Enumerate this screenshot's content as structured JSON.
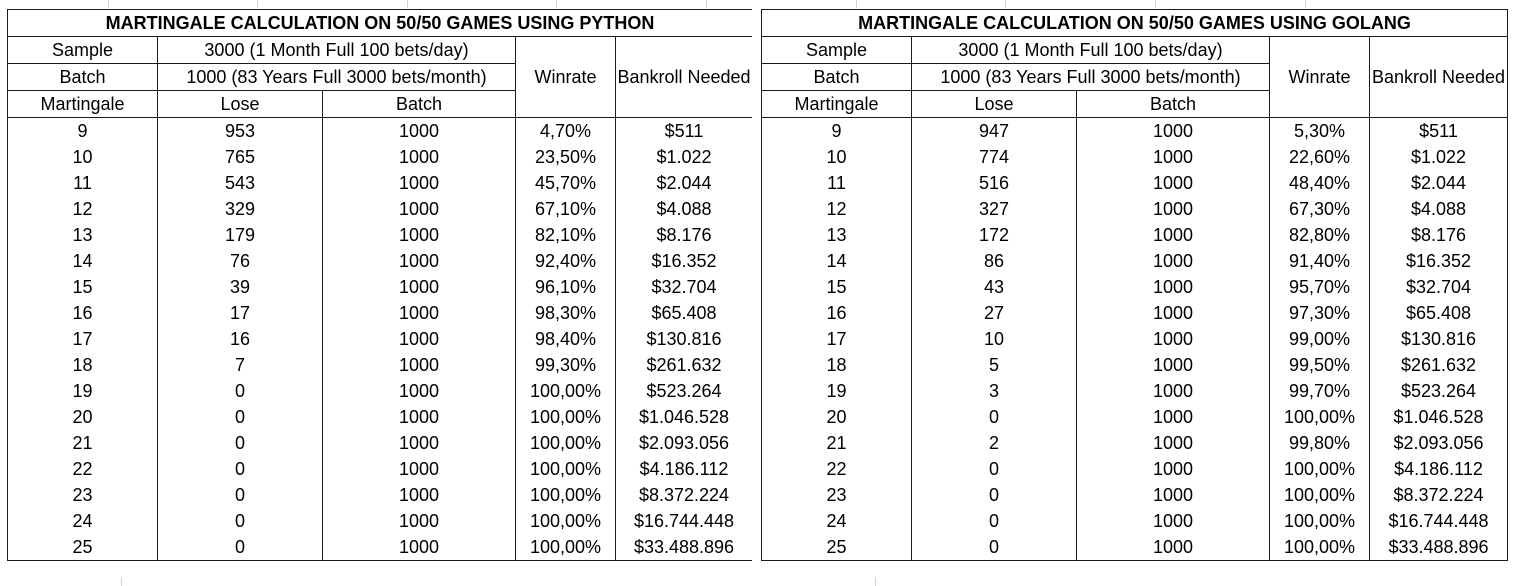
{
  "tables": [
    {
      "title": "MARTINGALE CALCULATION ON 50/50 GAMES USING PYTHON",
      "sample_label": "Sample",
      "sample_value": "3000 (1 Month Full 100 bets/day)",
      "batch_label": "Batch",
      "batch_value": "1000 (83 Years Full 3000 bets/month)",
      "winrate_header": "Winrate",
      "bankroll_header": "Bankroll Needed",
      "martingale_header": "Martingale",
      "lose_header": "Lose",
      "batch_header": "Batch",
      "rows": [
        {
          "m": "9",
          "lose": "953",
          "batch": "1000",
          "winrate": "4,70%",
          "bankroll": "$511"
        },
        {
          "m": "10",
          "lose": "765",
          "batch": "1000",
          "winrate": "23,50%",
          "bankroll": "$1.022"
        },
        {
          "m": "11",
          "lose": "543",
          "batch": "1000",
          "winrate": "45,70%",
          "bankroll": "$2.044"
        },
        {
          "m": "12",
          "lose": "329",
          "batch": "1000",
          "winrate": "67,10%",
          "bankroll": "$4.088"
        },
        {
          "m": "13",
          "lose": "179",
          "batch": "1000",
          "winrate": "82,10%",
          "bankroll": "$8.176"
        },
        {
          "m": "14",
          "lose": "76",
          "batch": "1000",
          "winrate": "92,40%",
          "bankroll": "$16.352"
        },
        {
          "m": "15",
          "lose": "39",
          "batch": "1000",
          "winrate": "96,10%",
          "bankroll": "$32.704"
        },
        {
          "m": "16",
          "lose": "17",
          "batch": "1000",
          "winrate": "98,30%",
          "bankroll": "$65.408"
        },
        {
          "m": "17",
          "lose": "16",
          "batch": "1000",
          "winrate": "98,40%",
          "bankroll": "$130.816"
        },
        {
          "m": "18",
          "lose": "7",
          "batch": "1000",
          "winrate": "99,30%",
          "bankroll": "$261.632"
        },
        {
          "m": "19",
          "lose": "0",
          "batch": "1000",
          "winrate": "100,00%",
          "bankroll": "$523.264"
        },
        {
          "m": "20",
          "lose": "0",
          "batch": "1000",
          "winrate": "100,00%",
          "bankroll": "$1.046.528"
        },
        {
          "m": "21",
          "lose": "0",
          "batch": "1000",
          "winrate": "100,00%",
          "bankroll": "$2.093.056"
        },
        {
          "m": "22",
          "lose": "0",
          "batch": "1000",
          "winrate": "100,00%",
          "bankroll": "$4.186.112"
        },
        {
          "m": "23",
          "lose": "0",
          "batch": "1000",
          "winrate": "100,00%",
          "bankroll": "$8.372.224"
        },
        {
          "m": "24",
          "lose": "0",
          "batch": "1000",
          "winrate": "100,00%",
          "bankroll": "$16.744.448"
        },
        {
          "m": "25",
          "lose": "0",
          "batch": "1000",
          "winrate": "100,00%",
          "bankroll": "$33.488.896"
        }
      ]
    },
    {
      "title": "MARTINGALE CALCULATION ON 50/50 GAMES USING GOLANG",
      "sample_label": "Sample",
      "sample_value": "3000 (1 Month Full 100 bets/day)",
      "batch_label": "Batch",
      "batch_value": "1000 (83 Years Full 3000 bets/month)",
      "winrate_header": "Winrate",
      "bankroll_header": "Bankroll Needed",
      "martingale_header": "Martingale",
      "lose_header": "Lose",
      "batch_header": "Batch",
      "rows": [
        {
          "m": "9",
          "lose": "947",
          "batch": "1000",
          "winrate": "5,30%",
          "bankroll": "$511"
        },
        {
          "m": "10",
          "lose": "774",
          "batch": "1000",
          "winrate": "22,60%",
          "bankroll": "$1.022"
        },
        {
          "m": "11",
          "lose": "516",
          "batch": "1000",
          "winrate": "48,40%",
          "bankroll": "$2.044"
        },
        {
          "m": "12",
          "lose": "327",
          "batch": "1000",
          "winrate": "67,30%",
          "bankroll": "$4.088"
        },
        {
          "m": "13",
          "lose": "172",
          "batch": "1000",
          "winrate": "82,80%",
          "bankroll": "$8.176"
        },
        {
          "m": "14",
          "lose": "86",
          "batch": "1000",
          "winrate": "91,40%",
          "bankroll": "$16.352"
        },
        {
          "m": "15",
          "lose": "43",
          "batch": "1000",
          "winrate": "95,70%",
          "bankroll": "$32.704"
        },
        {
          "m": "16",
          "lose": "27",
          "batch": "1000",
          "winrate": "97,30%",
          "bankroll": "$65.408"
        },
        {
          "m": "17",
          "lose": "10",
          "batch": "1000",
          "winrate": "99,00%",
          "bankroll": "$130.816"
        },
        {
          "m": "18",
          "lose": "5",
          "batch": "1000",
          "winrate": "99,50%",
          "bankroll": "$261.632"
        },
        {
          "m": "19",
          "lose": "3",
          "batch": "1000",
          "winrate": "99,70%",
          "bankroll": "$523.264"
        },
        {
          "m": "20",
          "lose": "0",
          "batch": "1000",
          "winrate": "100,00%",
          "bankroll": "$1.046.528"
        },
        {
          "m": "21",
          "lose": "2",
          "batch": "1000",
          "winrate": "99,80%",
          "bankroll": "$2.093.056"
        },
        {
          "m": "22",
          "lose": "0",
          "batch": "1000",
          "winrate": "100,00%",
          "bankroll": "$4.186.112"
        },
        {
          "m": "23",
          "lose": "0",
          "batch": "1000",
          "winrate": "100,00%",
          "bankroll": "$8.372.224"
        },
        {
          "m": "24",
          "lose": "0",
          "batch": "1000",
          "winrate": "100,00%",
          "bankroll": "$16.744.448"
        },
        {
          "m": "25",
          "lose": "0",
          "batch": "1000",
          "winrate": "100,00%",
          "bankroll": "$33.488.896"
        }
      ]
    }
  ]
}
